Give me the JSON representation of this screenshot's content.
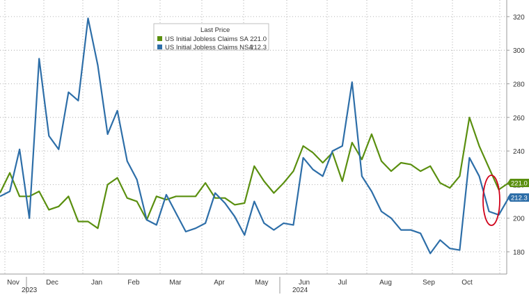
{
  "chart_data": {
    "type": "line",
    "legend": {
      "title": "Last Price",
      "placement": "top-center",
      "items": [
        {
          "label": "US Initial Jobless Claims SA",
          "value": "221.0",
          "color": "#5a8f0f"
        },
        {
          "label": "US Initial Jobless Claims NSA",
          "value": "212.3",
          "color": "#2d6ea8"
        }
      ]
    },
    "y_axis": {
      "side": "right",
      "ticks": [
        180,
        200,
        220,
        240,
        260,
        280,
        300,
        320
      ],
      "ylim": [
        172,
        328
      ]
    },
    "month_labels": [
      "Nov",
      "Dec",
      "Jan",
      "Feb",
      "Mar",
      "Apr",
      "May",
      "Jun",
      "Jul",
      "Aug",
      "Sep",
      "Oct"
    ],
    "year_labels": [
      "2023",
      "2024"
    ],
    "grid": true,
    "series": [
      {
        "name": "US Initial Jobless Claims SA",
        "color": "#5a8f0f",
        "last_value": "221.0",
        "values": [
          215,
          227,
          213,
          213,
          216,
          205,
          207,
          213,
          198,
          198,
          194,
          220,
          224,
          212,
          210,
          199,
          213,
          211,
          213,
          213,
          213,
          221,
          212,
          212,
          208,
          209,
          231,
          222,
          215,
          221,
          228,
          243,
          239,
          233,
          239,
          222,
          245,
          235,
          250,
          234,
          228,
          233,
          232,
          228,
          231,
          221,
          218,
          225,
          260,
          243,
          230,
          217,
          221
        ]
      },
      {
        "name": "US Initial Jobless Claims NSA",
        "color": "#2d6ea8",
        "last_value": "212.3",
        "values": [
          213,
          216,
          241,
          200,
          295,
          249,
          241,
          275,
          270,
          319,
          291,
          250,
          264,
          234,
          223,
          199,
          196,
          214,
          203,
          192,
          194,
          197,
          215,
          209,
          201,
          190,
          210,
          197,
          193,
          197,
          196,
          236,
          229,
          225,
          240,
          243,
          281,
          225,
          216,
          204,
          200,
          193,
          193,
          191,
          179,
          187,
          182,
          181,
          236,
          225,
          204,
          202,
          212
        ]
      }
    ]
  },
  "annotation": {
    "shape": "ellipse",
    "color": "#d0021b"
  }
}
